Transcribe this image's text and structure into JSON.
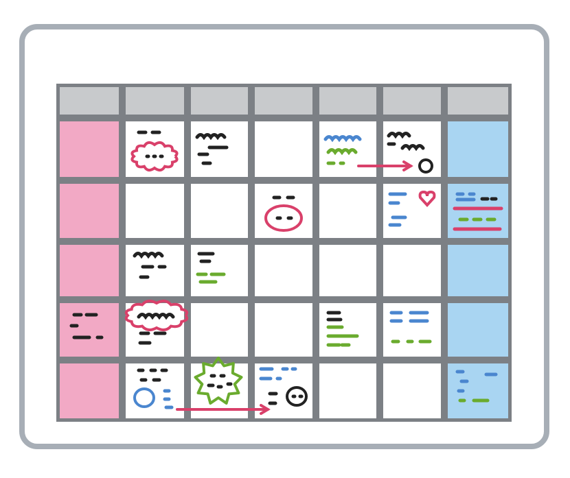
{
  "calendar": {
    "rows": 5,
    "columns": 7,
    "colors": {
      "board_border": "#a7aeb6",
      "board_fill": "#ffffff",
      "grid_line": "#7c8085",
      "header_fill": "#c8cacc",
      "weekday_fill": "#ffffff",
      "sunday_fill": "#f2a9c5",
      "saturday_fill": "#a9d5f2",
      "ink_black": "#222222",
      "ink_blue": "#4a86cf",
      "ink_green": "#6aab2e",
      "ink_red": "#d9406a"
    }
  }
}
